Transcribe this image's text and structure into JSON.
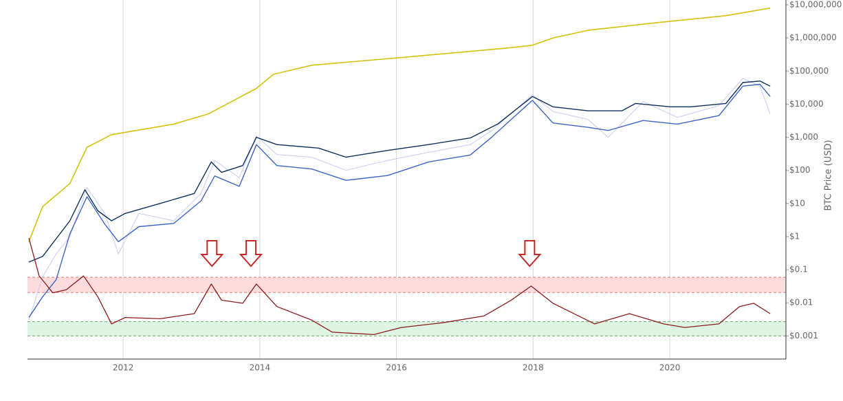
{
  "chart_data": {
    "type": "line",
    "y_label": "BTC Price (USD)",
    "log_y": true,
    "grid": "x",
    "xlim": [
      2010.6,
      2021.7
    ],
    "xticks": [
      2012,
      2014,
      2016,
      2018,
      2020
    ],
    "ylim": [
      0.0002,
      14000000
    ],
    "yticks": [
      {
        "value": 10000000,
        "label": "$10,000,000"
      },
      {
        "value": 1000000,
        "label": "$1,000,000"
      },
      {
        "value": 100000,
        "label": "$100,000"
      },
      {
        "value": 10000,
        "label": "$10,000"
      },
      {
        "value": 1000,
        "label": "$1,000"
      },
      {
        "value": 100,
        "label": "$100"
      },
      {
        "value": 10,
        "label": "$10"
      },
      {
        "value": 1,
        "label": "$1"
      },
      {
        "value": 0.1,
        "label": "$0.1"
      },
      {
        "value": 0.01,
        "label": "$0.01"
      },
      {
        "value": 0.001,
        "label": "$0.001"
      }
    ],
    "bands": [
      {
        "range": [
          0.0205,
          0.059
        ],
        "color": "#fcdcdc",
        "border": "#e07a7a"
      },
      {
        "range": [
          0.001,
          0.0027
        ],
        "color": "#dff5e3",
        "border": "#6aa872"
      }
    ],
    "arrows": {
      "x": [
        2013.3,
        2013.87,
        2017.95
      ],
      "color": "#c62828"
    },
    "series": [
      {
        "color": "#d4c20a",
        "width": 1.6,
        "x": [
          2010.62,
          2010.82,
          2011.22,
          2011.47,
          2011.83,
          2012.74,
          2013.24,
          2013.95,
          2014.2,
          2014.76,
          2016.02,
          2017.64,
          2017.99,
          2018.29,
          2018.8,
          2019.81,
          2020.82,
          2021.47
        ],
        "values": [
          0.7,
          8,
          40,
          500,
          1200,
          2500,
          5000,
          30000,
          80000,
          150000,
          250000,
          500000,
          600000,
          1000000,
          1700000,
          2900000,
          4700000,
          8000000
        ]
      },
      {
        "color": "#c6cbf5",
        "width": 1,
        "x": [
          2010.62,
          2010.82,
          2011.02,
          2011.22,
          2011.47,
          2011.73,
          2011.93,
          2012.23,
          2012.74,
          2013.14,
          2013.34,
          2013.7,
          2013.95,
          2014.25,
          2014.76,
          2015.26,
          2015.87,
          2016.47,
          2017.08,
          2017.38,
          2017.99,
          2018.29,
          2018.8,
          2019.1,
          2019.61,
          2020.11,
          2020.72,
          2021.07,
          2021.32,
          2021.47
        ],
        "values": [
          0.003,
          0.06,
          0.3,
          1,
          30,
          5,
          0.3,
          5,
          3,
          20,
          200,
          60,
          1100,
          300,
          250,
          100,
          200,
          350,
          600,
          1500,
          19000,
          6000,
          3500,
          1000,
          12000,
          4000,
          9000,
          60000,
          35000,
          5000
        ]
      },
      {
        "color": "#0d2f5e",
        "width": 1.4,
        "x": [
          2010.62,
          2010.82,
          2011.22,
          2011.44,
          2011.63,
          2011.83,
          2012.03,
          2012.54,
          2013.04,
          2013.29,
          2013.44,
          2013.75,
          2013.95,
          2014.25,
          2014.86,
          2015.26,
          2015.87,
          2016.47,
          2017.08,
          2017.48,
          2017.99,
          2018.29,
          2018.8,
          2019.3,
          2019.5,
          2020.01,
          2020.31,
          2020.82,
          2021.07,
          2021.32,
          2021.47
        ],
        "values": [
          0.17,
          0.25,
          3,
          26,
          6,
          3,
          5,
          10,
          20,
          180,
          87,
          140,
          1000,
          600,
          470,
          250,
          400,
          600,
          950,
          2500,
          17000,
          8300,
          6300,
          6300,
          10500,
          8300,
          8300,
          10500,
          45000,
          50000,
          35000
        ]
      },
      {
        "color": "#3d63c4",
        "width": 1.4,
        "x": [
          2010.62,
          2010.82,
          2011.02,
          2011.22,
          2011.47,
          2011.73,
          2011.93,
          2012.23,
          2012.74,
          2013.14,
          2013.34,
          2013.7,
          2013.95,
          2014.25,
          2014.76,
          2015.26,
          2015.87,
          2016.47,
          2017.08,
          2017.38,
          2017.99,
          2018.29,
          2018.8,
          2019.1,
          2019.61,
          2020.11,
          2020.72,
          2021.07,
          2021.32,
          2021.47
        ],
        "values": [
          0.0036,
          0.015,
          0.05,
          1.2,
          16,
          2.4,
          0.7,
          2,
          2.5,
          12,
          68,
          33,
          600,
          140,
          110,
          50,
          70,
          180,
          290,
          950,
          13000,
          2700,
          2000,
          1600,
          3200,
          2500,
          4500,
          35000,
          40000,
          17000
        ]
      },
      {
        "color": "#8b1a1a",
        "width": 1.3,
        "x": [
          2010.62,
          2010.77,
          2010.97,
          2011.17,
          2011.42,
          2011.63,
          2011.83,
          2012.03,
          2012.54,
          2013.04,
          2013.29,
          2013.44,
          2013.75,
          2013.95,
          2014.25,
          2014.76,
          2015.06,
          2015.67,
          2016.07,
          2016.68,
          2017.28,
          2017.68,
          2017.97,
          2018.29,
          2018.9,
          2019.41,
          2019.91,
          2020.22,
          2020.72,
          2021.02,
          2021.23,
          2021.47
        ],
        "values": [
          0.9,
          0.065,
          0.02,
          0.025,
          0.065,
          0.015,
          0.0023,
          0.0036,
          0.0033,
          0.0047,
          0.037,
          0.012,
          0.0097,
          0.037,
          0.0077,
          0.003,
          0.0013,
          0.0011,
          0.0018,
          0.0025,
          0.004,
          0.012,
          0.032,
          0.0097,
          0.0023,
          0.0047,
          0.0023,
          0.0018,
          0.0023,
          0.0077,
          0.0097,
          0.0047
        ]
      }
    ]
  }
}
